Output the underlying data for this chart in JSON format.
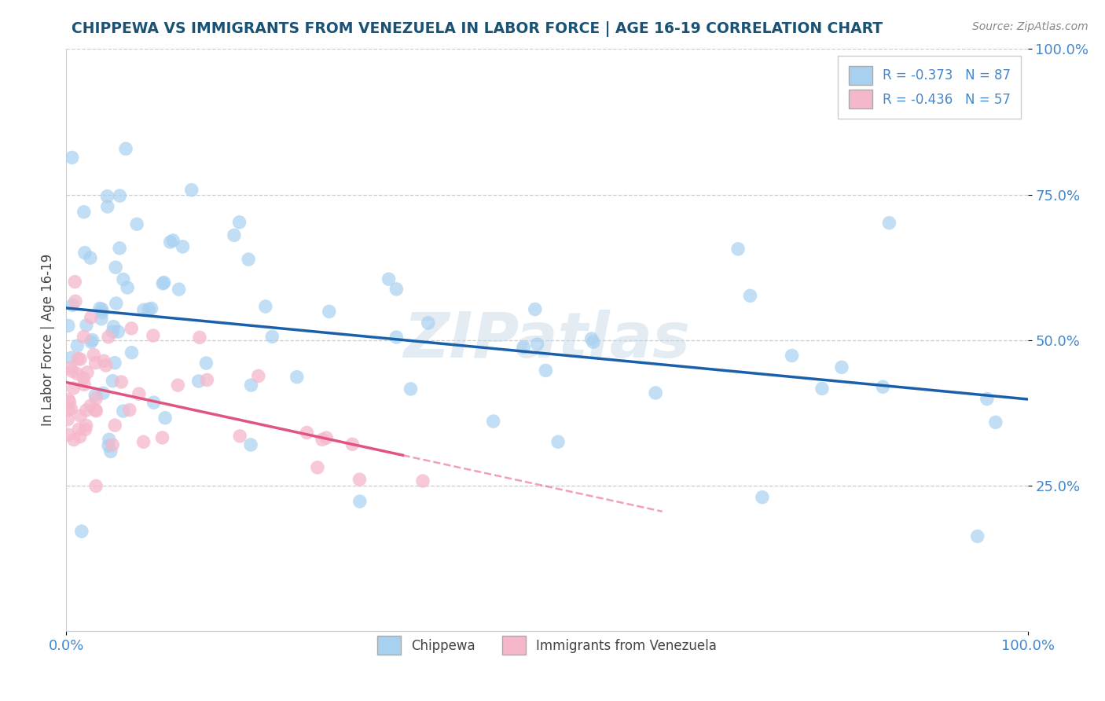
{
  "title": "CHIPPEWA VS IMMIGRANTS FROM VENEZUELA IN LABOR FORCE | AGE 16-19 CORRELATION CHART",
  "source_text": "Source: ZipAtlas.com",
  "ylabel": "In Labor Force | Age 16-19",
  "chippewa_color": "#a8d1f0",
  "venezuela_color": "#f5b8cb",
  "chippewa_line_color": "#1a5faa",
  "venezuela_line_color": "#e05580",
  "legend_chippewa_label": "R = -0.373   N = 87",
  "legend_venezuela_label": "R = -0.436   N = 57",
  "legend_bottom_chippewa": "Chippewa",
  "legend_bottom_venezuela": "Immigrants from Venezuela",
  "title_color": "#1a5276",
  "source_color": "#888888",
  "axis_label_color": "#444444",
  "tick_color": "#4488cc",
  "background_color": "#ffffff",
  "watermark_text": "ZIPatlas"
}
